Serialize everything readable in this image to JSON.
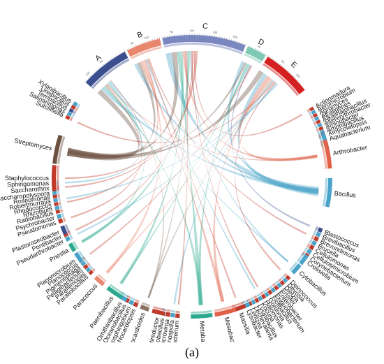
{
  "chart_data": {
    "type": "chord",
    "groups": [
      {
        "name": "A",
        "color": "#3b4f8f",
        "start": -48,
        "end": -28,
        "ticks": [
          {
            "deg": -45,
            "label": "100"
          },
          {
            "deg": -38,
            "label": "50"
          }
        ]
      },
      {
        "name": "B",
        "color": "#e8866e",
        "start": -27,
        "end": -13,
        "ticks": [
          {
            "deg": -24,
            "label": "50"
          },
          {
            "deg": -18,
            "label": "100"
          }
        ]
      },
      {
        "name": "C",
        "color": "#7b88c0",
        "start": -12,
        "end": 22,
        "ticks": [
          {
            "deg": -8,
            "label": "50"
          },
          {
            "deg": 0,
            "label": "100"
          },
          {
            "deg": 9,
            "label": "150"
          },
          {
            "deg": 17,
            "label": "200"
          }
        ]
      },
      {
        "name": "D",
        "color": "#7ec8b4",
        "start": 23,
        "end": 31,
        "ticks": [
          {
            "deg": 27,
            "label": "50"
          }
        ]
      },
      {
        "name": "E",
        "color": "#d42020",
        "start": 32,
        "end": 52,
        "ticks": [
          {
            "deg": 38,
            "label": "50"
          },
          {
            "deg": 46,
            "label": "100"
          }
        ]
      }
    ],
    "genera": [
      {
        "name": "Actinomadura",
        "deg": 60,
        "color": "#c0392b"
      },
      {
        "name": "Aeromicrobium",
        "deg": 61.5,
        "color": "#4aa3c8"
      },
      {
        "name": "Agromyces",
        "deg": 63,
        "color": "#c0392b"
      },
      {
        "name": "Alcaligenes",
        "deg": 64.5,
        "color": "#4aa3c8"
      },
      {
        "name": "Alkalihalobacillus",
        "deg": 66,
        "color": "#c0392b"
      },
      {
        "name": "Altererythrobacter",
        "deg": 67.5,
        "color": "#4aa3c8"
      },
      {
        "name": "Aminobacter",
        "deg": 69,
        "color": "#c0392b"
      },
      {
        "name": "Amphibacillus",
        "deg": 70.5,
        "color": "#4aa3c8"
      },
      {
        "name": "Amycolatopsis",
        "deg": 72,
        "color": "#c0392b"
      },
      {
        "name": "Aquabacterium",
        "deg": 74,
        "color": "#4aa3c8"
      },
      {
        "name": "Arthrobacter",
        "deg": 80,
        "color": "#e06048"
      },
      {
        "name": "Bacillus",
        "deg": 96,
        "color": "#4aa3c8"
      },
      {
        "name": "Blastococcus",
        "deg": 112,
        "color": "#3b4f8f"
      },
      {
        "name": "Brevibacillus",
        "deg": 114,
        "color": "#4aa3c8"
      },
      {
        "name": "Brevundimonas",
        "deg": 116,
        "color": "#c0392b"
      },
      {
        "name": "Brucella",
        "deg": 118,
        "color": "#4aa3c8"
      },
      {
        "name": "Cellulomonas",
        "deg": 120,
        "color": "#c0392b"
      },
      {
        "name": "Cellulosimicrobium",
        "deg": 122,
        "color": "#4aa3c8"
      },
      {
        "name": "Corynebacterium",
        "deg": 124,
        "color": "#c0392b"
      },
      {
        "name": "Crossiella",
        "deg": 126,
        "color": "#4aa3c8"
      },
      {
        "name": "Cytobacillus",
        "deg": 131,
        "color": "#4aa3c8"
      },
      {
        "name": "Deinococcus",
        "deg": 136,
        "color": "#c0392b"
      },
      {
        "name": "Devosia",
        "deg": 137.6,
        "color": "#4aa3c8"
      },
      {
        "name": "Dietzia",
        "deg": 139.2,
        "color": "#c0392b"
      },
      {
        "name": "Ensifer",
        "deg": 140.8,
        "color": "#4aa3c8"
      },
      {
        "name": "Enterobacter",
        "deg": 142.4,
        "color": "#c0392b"
      },
      {
        "name": "Exiguobacterium",
        "deg": 144,
        "color": "#4aa3c8"
      },
      {
        "name": "Fictibacillus",
        "deg": 145.6,
        "color": "#c0392b"
      },
      {
        "name": "Gordonia",
        "deg": 147.2,
        "color": "#4aa3c8"
      },
      {
        "name": "Halomonas",
        "deg": 148.8,
        "color": "#c0392b"
      },
      {
        "name": "Kocuria",
        "deg": 150.4,
        "color": "#4aa3c8"
      },
      {
        "name": "Lysinibacillus",
        "deg": 152,
        "color": "#c0392b"
      },
      {
        "name": "Lechevalieria",
        "deg": 153.6,
        "color": "#4aa3c8"
      },
      {
        "name": "Lentzea",
        "deg": 155.2,
        "color": "#c0392b"
      },
      {
        "name": "Lysobacter",
        "deg": 156.8,
        "color": "#4aa3c8"
      },
      {
        "name": "Massilia",
        "deg": 160,
        "color": "#c0392b"
      },
      {
        "name": "Mesobacillus",
        "deg": 166,
        "color": "#e06048"
      },
      {
        "name": "Metabacillus",
        "deg": 176,
        "color": "#2ba88f"
      },
      {
        "name": "Microbacterium",
        "deg": 186,
        "color": "#c0392b"
      },
      {
        "name": "Micromonospora",
        "deg": 188,
        "color": "#4aa3c8"
      },
      {
        "name": "Microvirga",
        "deg": 190,
        "color": "#c0392b"
      },
      {
        "name": "Neobacillus",
        "deg": 192,
        "color": "#4aa3c8"
      },
      {
        "name": "Nitratireductor",
        "deg": 194,
        "color": "#c0392b"
      },
      {
        "name": "Nocardioides",
        "deg": 200,
        "color": "#8a7060"
      },
      {
        "name": "Nocardiopsis",
        "deg": 204,
        "color": "#c0392b"
      },
      {
        "name": "Novosphingobium",
        "deg": 206,
        "color": "#4aa3c8"
      },
      {
        "name": "Oceanobacillus",
        "deg": 208,
        "color": "#c0392b"
      },
      {
        "name": "Ornithinibacillus",
        "deg": 210,
        "color": "#4aa3c8"
      },
      {
        "name": "Paenibacillus",
        "deg": 214,
        "color": "#2ba88f"
      },
      {
        "name": "Paracoccus",
        "deg": 222,
        "color": "#e8866e"
      },
      {
        "name": "Paraliobacillus",
        "deg": 227,
        "color": "#c0392b"
      },
      {
        "name": "Parafilimonas",
        "deg": 228.6,
        "color": "#4aa3c8"
      },
      {
        "name": "Pelagibacterium",
        "deg": 230.2,
        "color": "#c0392b"
      },
      {
        "name": "Pigmentiphaga",
        "deg": 231.8,
        "color": "#4aa3c8"
      },
      {
        "name": "Planococcus",
        "deg": 233.4,
        "color": "#c0392b"
      },
      {
        "name": "Planomicrobium",
        "deg": 235,
        "color": "#4aa3c8"
      },
      {
        "name": "Priestia",
        "deg": 240,
        "color": "#2ba88f"
      },
      {
        "name": "Pseudarthrobacter",
        "deg": 244,
        "color": "#4aa3c8"
      },
      {
        "name": "Pontibacter",
        "deg": 246,
        "color": "#c0392b"
      },
      {
        "name": "Plastoroseobacter",
        "deg": 248,
        "color": "#3b4f8f"
      },
      {
        "name": "Pseudomonas",
        "deg": 252,
        "color": "#c0392b"
      },
      {
        "name": "Psychrobacter",
        "deg": 254,
        "color": "#4aa3c8"
      },
      {
        "name": "Radiobacillus",
        "deg": 256,
        "color": "#c0392b"
      },
      {
        "name": "Rhizobium",
        "deg": 257.6,
        "color": "#4aa3c8"
      },
      {
        "name": "Rhodococcus",
        "deg": 259.2,
        "color": "#c0392b"
      },
      {
        "name": "Robertmurraya",
        "deg": 260.8,
        "color": "#4aa3c8"
      },
      {
        "name": "Roseomonas",
        "deg": 262.4,
        "color": "#c0392b"
      },
      {
        "name": "Saccharopolyspora",
        "deg": 264,
        "color": "#4aa3c8"
      },
      {
        "name": "Saccharothrix",
        "deg": 266,
        "color": "#c0392b"
      },
      {
        "name": "Sphingomonas",
        "deg": 268,
        "color": "#4aa3c8"
      },
      {
        "name": "Staphylococcus",
        "deg": 270,
        "color": "#c0392b"
      },
      {
        "name": "Streptomyces",
        "deg": 282,
        "color": "#6b5040"
      },
      {
        "name": "Sutcliffiella",
        "deg": 296,
        "color": "#c0392b"
      },
      {
        "name": "Salinarimonas",
        "deg": 297.6,
        "color": "#4aa3c8"
      },
      {
        "name": "Terribacillus",
        "deg": 299.2,
        "color": "#3b4f8f"
      },
      {
        "name": "Ureibacillus",
        "deg": 300.8,
        "color": "#c0392b"
      },
      {
        "name": "Xylanibacillus",
        "deg": 302.4,
        "color": "#4aa3c8"
      }
    ],
    "links": [
      [
        "A",
        "Streptomyces",
        5
      ],
      [
        "A",
        "Bacillus",
        3
      ],
      [
        "A",
        "Metabacillus",
        2
      ],
      [
        "A",
        "Pseudomonas",
        1
      ],
      [
        "A",
        "Arthrobacter",
        1
      ],
      [
        "A",
        "Priestia",
        1
      ],
      [
        "A",
        "Sphingomonas",
        1
      ],
      [
        "A",
        "Cytobacillus",
        1
      ],
      [
        "A",
        "Nocardioides",
        1
      ],
      [
        "B",
        "Bacillus",
        3
      ],
      [
        "B",
        "Streptomyces",
        3
      ],
      [
        "B",
        "Mesobacillus",
        2
      ],
      [
        "B",
        "Paracoccus",
        2
      ],
      [
        "B",
        "Rhodococcus",
        1
      ],
      [
        "B",
        "Kocuria",
        1
      ],
      [
        "B",
        "Massilia",
        1
      ],
      [
        "B",
        "Brevundimonas",
        1
      ],
      [
        "C",
        "Bacillus",
        6
      ],
      [
        "C",
        "Streptomyces",
        5
      ],
      [
        "C",
        "Metabacillus",
        3
      ],
      [
        "C",
        "Paenibacillus",
        2
      ],
      [
        "C",
        "Arthrobacter",
        2
      ],
      [
        "C",
        "Microbacterium",
        1
      ],
      [
        "C",
        "Nocardioides",
        1
      ],
      [
        "C",
        "Priestia",
        2
      ],
      [
        "C",
        "Cytobacillus",
        1
      ],
      [
        "C",
        "Halomonas",
        1
      ],
      [
        "C",
        "Pontibacter",
        1
      ],
      [
        "C",
        "Actinomadura",
        1
      ],
      [
        "C",
        "Saccharothrix",
        1
      ],
      [
        "C",
        "Staphylococcus",
        1
      ],
      [
        "D",
        "Bacillus",
        3
      ],
      [
        "D",
        "Streptomyces",
        2
      ],
      [
        "D",
        "Metabacillus",
        2
      ],
      [
        "D",
        "Paenibacillus",
        1
      ],
      [
        "D",
        "Blastococcus",
        1
      ],
      [
        "D",
        "Planococcus",
        1
      ],
      [
        "E",
        "Streptomyces",
        5
      ],
      [
        "E",
        "Bacillus",
        4
      ],
      [
        "E",
        "Arthrobacter",
        2
      ],
      [
        "E",
        "Mesobacillus",
        2
      ],
      [
        "E",
        "Paracoccus",
        1
      ],
      [
        "E",
        "Nocardioides",
        1
      ],
      [
        "E",
        "Micromonospora",
        1
      ],
      [
        "E",
        "Sutcliffiella",
        1
      ],
      [
        "E",
        "Deinococcus",
        1
      ],
      [
        "E",
        "Pseudarthrobacter",
        1
      ],
      [
        "E",
        "Robertmurraya",
        1
      ]
    ],
    "caption": "(a)"
  }
}
